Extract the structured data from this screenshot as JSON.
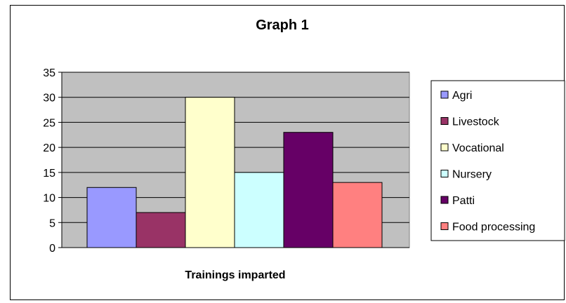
{
  "chart_data": {
    "type": "bar",
    "title": "Graph 1",
    "xlabel": "Trainings imparted",
    "ylabel": "",
    "ylim": [
      0,
      35
    ],
    "yticks": [
      0,
      5,
      10,
      15,
      20,
      25,
      30,
      35
    ],
    "categories": [
      ""
    ],
    "series": [
      {
        "name": "Agri",
        "values": [
          12
        ],
        "color": "#9999ff"
      },
      {
        "name": "Livestock",
        "values": [
          7
        ],
        "color": "#993366"
      },
      {
        "name": "Vocational",
        "values": [
          30
        ],
        "color": "#ffffcc"
      },
      {
        "name": "Nursery",
        "values": [
          15
        ],
        "color": "#ccffff"
      },
      {
        "name": "Patti",
        "values": [
          23
        ],
        "color": "#660066"
      },
      {
        "name": "Food processing",
        "values": [
          13
        ],
        "color": "#ff8080"
      }
    ],
    "plot_background": "#c0c0c0",
    "grid": true,
    "legend_position": "right"
  }
}
